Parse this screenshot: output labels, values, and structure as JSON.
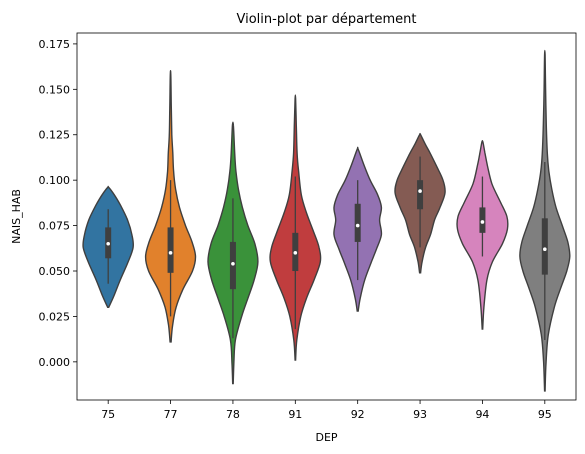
{
  "chart_data": {
    "type": "violin",
    "title": "Violin-plot par département",
    "xlabel": "DEP",
    "ylabel": "NAIS_HAB",
    "ylim": [
      -0.021,
      0.181
    ],
    "yticks": [
      0.0,
      0.025,
      0.05,
      0.075,
      0.1,
      0.125,
      0.15,
      0.175
    ],
    "ytick_labels": [
      "0.000",
      "0.025",
      "0.050",
      "0.075",
      "0.100",
      "0.125",
      "0.150",
      "0.175"
    ],
    "grid": false,
    "categories": [
      "75",
      "77",
      "78",
      "91",
      "92",
      "93",
      "94",
      "95"
    ],
    "series": [
      {
        "category": "75",
        "color": "#3274a1",
        "min": 0.03,
        "q1": 0.057,
        "median": 0.065,
        "q3": 0.074,
        "max": 0.096,
        "whisker_low": 0.043,
        "whisker_high": 0.084,
        "shape": [
          [
            0.03,
            0.02
          ],
          [
            0.036,
            0.22
          ],
          [
            0.045,
            0.48
          ],
          [
            0.055,
            0.8
          ],
          [
            0.063,
            1.0
          ],
          [
            0.07,
            0.95
          ],
          [
            0.078,
            0.78
          ],
          [
            0.086,
            0.5
          ],
          [
            0.092,
            0.24
          ],
          [
            0.096,
            0.02
          ]
        ]
      },
      {
        "category": "77",
        "color": "#e1812c",
        "min": 0.011,
        "q1": 0.049,
        "median": 0.06,
        "q3": 0.074,
        "max": 0.158,
        "whisker_low": 0.025,
        "whisker_high": 0.1,
        "shape": [
          [
            0.011,
            0.02
          ],
          [
            0.02,
            0.08
          ],
          [
            0.03,
            0.22
          ],
          [
            0.04,
            0.5
          ],
          [
            0.05,
            0.88
          ],
          [
            0.058,
            1.0
          ],
          [
            0.066,
            0.86
          ],
          [
            0.075,
            0.6
          ],
          [
            0.085,
            0.36
          ],
          [
            0.095,
            0.2
          ],
          [
            0.105,
            0.12
          ],
          [
            0.115,
            0.09
          ],
          [
            0.125,
            0.05
          ],
          [
            0.14,
            0.03
          ],
          [
            0.158,
            0.01
          ]
        ]
      },
      {
        "category": "78",
        "color": "#3a923a",
        "min": -0.012,
        "q1": 0.04,
        "median": 0.054,
        "q3": 0.066,
        "max": 0.13,
        "whisker_low": 0.013,
        "whisker_high": 0.09,
        "shape": [
          [
            -0.012,
            0.01
          ],
          [
            0.0,
            0.04
          ],
          [
            0.012,
            0.1
          ],
          [
            0.025,
            0.35
          ],
          [
            0.035,
            0.6
          ],
          [
            0.045,
            0.85
          ],
          [
            0.055,
            1.0
          ],
          [
            0.065,
            0.88
          ],
          [
            0.075,
            0.6
          ],
          [
            0.085,
            0.38
          ],
          [
            0.095,
            0.22
          ],
          [
            0.105,
            0.12
          ],
          [
            0.115,
            0.07
          ],
          [
            0.13,
            0.02
          ]
        ]
      },
      {
        "category": "91",
        "color": "#c03d3e",
        "min": 0.001,
        "q1": 0.05,
        "median": 0.06,
        "q3": 0.071,
        "max": 0.145,
        "whisker_low": 0.018,
        "whisker_high": 0.102,
        "shape": [
          [
            0.001,
            0.01
          ],
          [
            0.012,
            0.06
          ],
          [
            0.025,
            0.22
          ],
          [
            0.035,
            0.45
          ],
          [
            0.045,
            0.75
          ],
          [
            0.055,
            1.0
          ],
          [
            0.063,
            0.95
          ],
          [
            0.072,
            0.72
          ],
          [
            0.082,
            0.45
          ],
          [
            0.092,
            0.24
          ],
          [
            0.105,
            0.13
          ],
          [
            0.115,
            0.07
          ],
          [
            0.13,
            0.04
          ],
          [
            0.145,
            0.01
          ]
        ]
      },
      {
        "category": "92",
        "color": "#9372b2",
        "min": 0.028,
        "q1": 0.066,
        "median": 0.075,
        "q3": 0.087,
        "max": 0.117,
        "whisker_low": 0.045,
        "whisker_high": 0.1,
        "shape": [
          [
            0.028,
            0.02
          ],
          [
            0.035,
            0.1
          ],
          [
            0.045,
            0.28
          ],
          [
            0.055,
            0.55
          ],
          [
            0.062,
            0.75
          ],
          [
            0.07,
            0.95
          ],
          [
            0.078,
            0.88
          ],
          [
            0.085,
            0.95
          ],
          [
            0.092,
            0.8
          ],
          [
            0.1,
            0.5
          ],
          [
            0.108,
            0.26
          ],
          [
            0.117,
            0.02
          ]
        ]
      },
      {
        "category": "93",
        "color": "#845b53",
        "min": 0.049,
        "q1": 0.084,
        "median": 0.094,
        "q3": 0.1,
        "max": 0.125,
        "whisker_low": 0.063,
        "whisker_high": 0.113,
        "shape": [
          [
            0.049,
            0.02
          ],
          [
            0.055,
            0.08
          ],
          [
            0.063,
            0.22
          ],
          [
            0.07,
            0.42
          ],
          [
            0.078,
            0.58
          ],
          [
            0.085,
            0.8
          ],
          [
            0.093,
            1.0
          ],
          [
            0.1,
            0.92
          ],
          [
            0.108,
            0.65
          ],
          [
            0.115,
            0.4
          ],
          [
            0.12,
            0.2
          ],
          [
            0.125,
            0.02
          ]
        ]
      },
      {
        "category": "94",
        "color": "#d684bd",
        "min": 0.018,
        "q1": 0.071,
        "median": 0.077,
        "q3": 0.085,
        "max": 0.121,
        "whisker_low": 0.058,
        "whisker_high": 0.102,
        "shape": [
          [
            0.018,
            0.01
          ],
          [
            0.03,
            0.06
          ],
          [
            0.045,
            0.18
          ],
          [
            0.055,
            0.4
          ],
          [
            0.065,
            0.8
          ],
          [
            0.073,
            1.0
          ],
          [
            0.08,
            0.98
          ],
          [
            0.088,
            0.72
          ],
          [
            0.098,
            0.38
          ],
          [
            0.108,
            0.2
          ],
          [
            0.115,
            0.1
          ],
          [
            0.121,
            0.02
          ]
        ]
      },
      {
        "category": "95",
        "color": "#7f7f7f",
        "min": -0.016,
        "q1": 0.048,
        "median": 0.062,
        "q3": 0.079,
        "max": 0.169,
        "whisker_low": 0.012,
        "whisker_high": 0.11,
        "shape": [
          [
            -0.016,
            0.01
          ],
          [
            0.0,
            0.05
          ],
          [
            0.015,
            0.14
          ],
          [
            0.03,
            0.38
          ],
          [
            0.04,
            0.62
          ],
          [
            0.05,
            0.88
          ],
          [
            0.058,
            1.0
          ],
          [
            0.066,
            0.92
          ],
          [
            0.075,
            0.7
          ],
          [
            0.085,
            0.45
          ],
          [
            0.095,
            0.28
          ],
          [
            0.105,
            0.16
          ],
          [
            0.115,
            0.1
          ],
          [
            0.13,
            0.06
          ],
          [
            0.15,
            0.03
          ],
          [
            0.169,
            0.01
          ]
        ]
      }
    ]
  }
}
